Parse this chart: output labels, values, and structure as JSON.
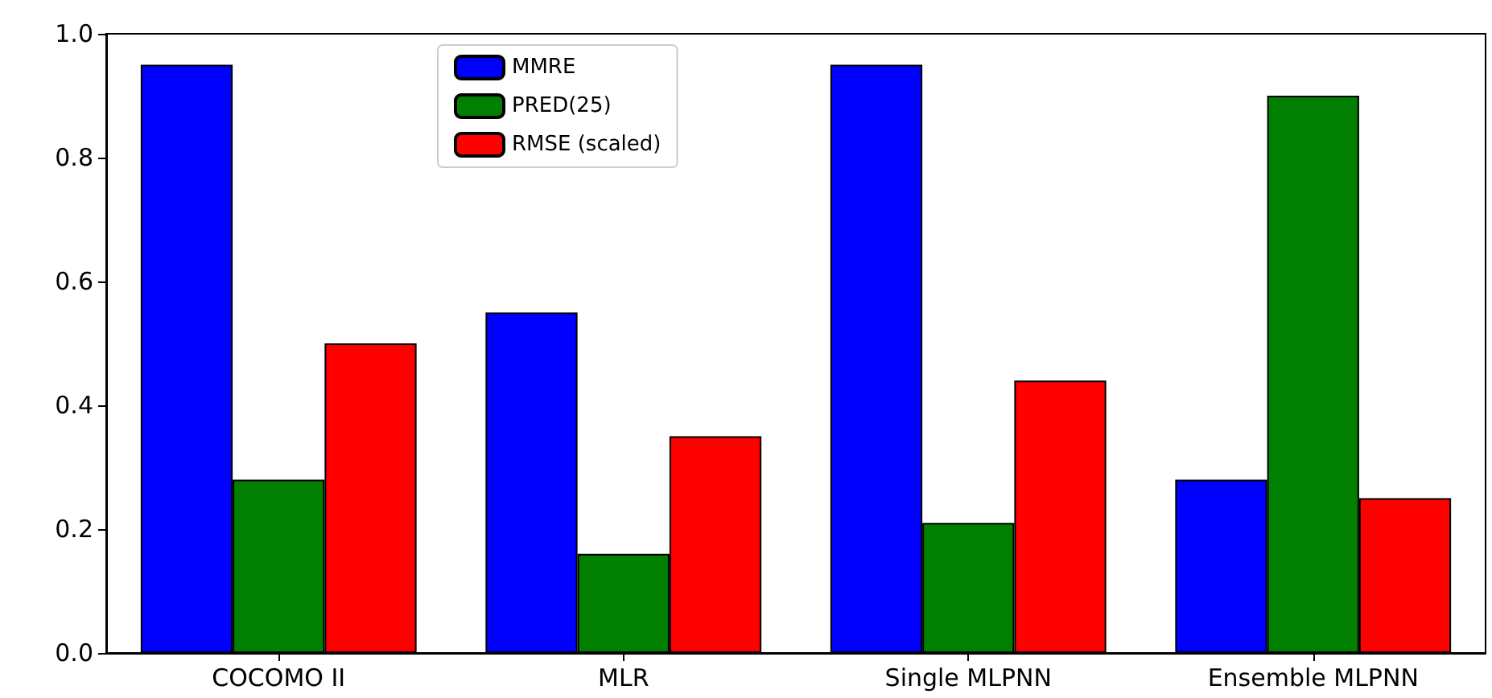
{
  "chart_data": {
    "type": "bar",
    "categories": [
      "COCOMO II",
      "MLR",
      "Single MLPNN",
      "Ensemble MLPNN"
    ],
    "series": [
      {
        "name": "MMRE",
        "color": "#0000ff",
        "values": [
          0.95,
          0.55,
          0.95,
          0.28
        ]
      },
      {
        "name": "PRED(25)",
        "color": "#007f00",
        "values": [
          0.28,
          0.16,
          0.21,
          0.9
        ]
      },
      {
        "name": "RMSE (scaled)",
        "color": "#ff0000",
        "values": [
          0.5,
          0.35,
          0.44,
          0.25
        ]
      }
    ],
    "ylim": [
      0,
      1
    ],
    "yticks": [
      {
        "value": 0,
        "label": "0.0"
      },
      0.2,
      0.4,
      0.6,
      0.8,
      {
        "value": 1,
        "label": "1.0"
      }
    ],
    "grid": false,
    "legend": "top"
  }
}
